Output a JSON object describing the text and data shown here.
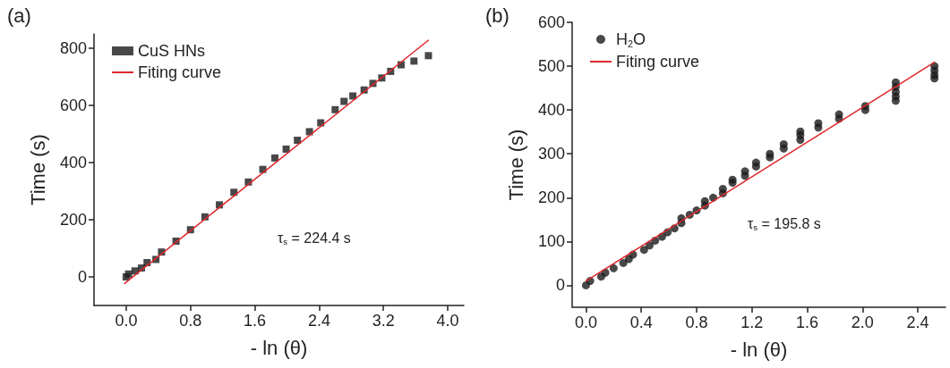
{
  "chart_data": [
    {
      "type": "scatter",
      "xlabel": "- ln (θ)",
      "ylabel": "Time (s)",
      "xlim": [
        -0.4,
        4.2
      ],
      "xticks": [
        {
          "value": 0,
          "label": "0.0"
        },
        0.8,
        1.6,
        2.4,
        3.2,
        {
          "value": 4,
          "label": "4.0"
        }
      ],
      "ylim": [
        -100,
        850
      ],
      "yticks": [
        0,
        200,
        400,
        600,
        800
      ],
      "grid": false,
      "legend": "top left",
      "annotations": [
        "(a)",
        "τ$_{s}$ = 224.4 s"
      ],
      "series": [
        {
          "name": "CuS HNs",
          "type": "scatter",
          "marker": "square",
          "color": "#1a1a1a",
          "x": [
            0,
            0.03,
            0.11,
            0.19,
            0.26,
            0.37,
            0.44,
            0.62,
            0.8,
            0.98,
            1.16,
            1.34,
            1.52,
            1.7,
            1.85,
            1.99,
            2.13,
            2.28,
            2.42,
            2.6,
            2.71,
            2.82,
            2.96,
            3.07,
            3.18,
            3.29,
            3.42,
            3.58,
            3.76
          ],
          "values": [
            0,
            10,
            21,
            31,
            50,
            61,
            87,
            125,
            165,
            210,
            252,
            296,
            332,
            376,
            416,
            447,
            478,
            508,
            539,
            585,
            614,
            633,
            654,
            677,
            696,
            719,
            742,
            755,
            774
          ]
        },
        {
          "name": "Fiting curve",
          "type": "line",
          "marker": "none",
          "color": "#e0262b",
          "x": [
            -0.02,
            3.76
          ],
          "values": [
            -23,
            828
          ]
        }
      ]
    },
    {
      "type": "scatter",
      "xlabel": "- ln (θ)",
      "ylabel": "Time (s)",
      "xlim": [
        -0.1,
        2.6
      ],
      "xticks": [
        {
          "value": 0,
          "label": "0.0"
        },
        0.4,
        0.8,
        1.2,
        1.6,
        {
          "value": 2,
          "label": "2.0"
        },
        2.4
      ],
      "ylim": [
        -50,
        600
      ],
      "yticks": [
        0,
        100,
        200,
        300,
        400,
        500,
        600
      ],
      "grid": false,
      "legend": "top left",
      "annotations": [
        "(b)",
        "τ$_{s}$ = 195.8 s"
      ],
      "series": [
        {
          "name": "H$_{2}$O",
          "type": "scatter",
          "marker": "circle",
          "color": "#1a1a1a",
          "x": [
            0,
            0.03,
            0.11,
            0.14,
            0.2,
            0.27,
            0.31,
            0.34,
            0.42,
            0.46,
            0.5,
            0.55,
            0.59,
            0.64,
            0.69,
            0.69,
            0.75,
            0.8,
            0.86,
            0.86,
            0.92,
            0.99,
            0.99,
            1.06,
            1.06,
            1.15,
            1.15,
            1.23,
            1.23,
            1.33,
            1.33,
            1.43,
            1.43,
            1.55,
            1.55,
            1.55,
            1.68,
            1.68,
            1.83,
            1.83,
            2.02,
            2.02,
            2.24,
            2.24,
            2.24,
            2.24,
            2.24,
            2.52,
            2.52,
            2.52,
            2.52
          ],
          "values": [
            0,
            10,
            20,
            29,
            39,
            51,
            60,
            70,
            81,
            91,
            102,
            111,
            121,
            130,
            142,
            153,
            161,
            171,
            182,
            192,
            200,
            210,
            220,
            234,
            241,
            250,
            260,
            271,
            280,
            292,
            300,
            312,
            322,
            332,
            343,
            351,
            360,
            370,
            380,
            390,
            400,
            409,
            421,
            431,
            441,
            453,
            463,
            472,
            480,
            490,
            500
          ]
        },
        {
          "name": "Fiting curve",
          "type": "line",
          "marker": "none",
          "color": "#e0262b",
          "x": [
            0,
            2.52
          ],
          "values": [
            10,
            509
          ]
        }
      ]
    }
  ]
}
